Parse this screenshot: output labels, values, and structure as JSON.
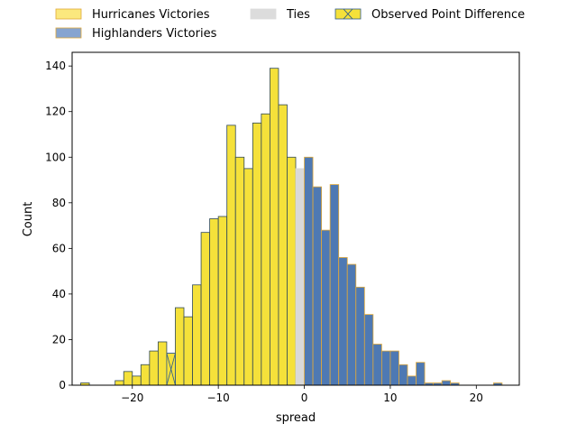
{
  "chart_data": {
    "type": "bar",
    "xlabel": "spread",
    "ylabel": "Count",
    "xlim": [
      -27,
      25
    ],
    "ylim": [
      0,
      146
    ],
    "xticks": [
      -20,
      -10,
      0,
      10,
      20
    ],
    "yticks": [
      0,
      20,
      40,
      60,
      80,
      100,
      120,
      140
    ],
    "xtick_labels": [
      "−20",
      "−10",
      "0",
      "10",
      "20"
    ],
    "ytick_labels": [
      "0",
      "20",
      "40",
      "60",
      "80",
      "100",
      "120",
      "140"
    ],
    "bin_width": 1,
    "grid": false,
    "legend_position": "top",
    "legend": [
      {
        "label": "Hurricanes Victories",
        "fill": "#fbe87e",
        "edge": "#e0a93a"
      },
      {
        "label": "Highlanders Victories",
        "fill": "#86a4d0",
        "edge": "#e0a93a"
      },
      {
        "label": "Ties",
        "fill": "#dcdcdc",
        "edge": "#dcdcdc"
      },
      {
        "label": "Observed Point Difference",
        "fill": "#f5e13a",
        "edge": "#2d5a8c"
      }
    ],
    "series": [
      {
        "name": "Hurricanes Victories",
        "color": "#f5e13a",
        "edge": "#2f4858",
        "bins": [
          [
            -26,
            1
          ],
          [
            -25,
            0
          ],
          [
            -24,
            0
          ],
          [
            -23,
            0
          ],
          [
            -22,
            2
          ],
          [
            -21,
            6
          ],
          [
            -20,
            4
          ],
          [
            -19,
            9
          ],
          [
            -18,
            15
          ],
          [
            -17,
            19
          ],
          [
            -16,
            14
          ],
          [
            -15,
            34
          ],
          [
            -14,
            30
          ],
          [
            -13,
            44
          ],
          [
            -12,
            67
          ],
          [
            -11,
            73
          ],
          [
            -10,
            74
          ],
          [
            -9,
            114
          ],
          [
            -8,
            100
          ],
          [
            -7,
            95
          ],
          [
            -6,
            115
          ],
          [
            -5,
            119
          ],
          [
            -4,
            139
          ],
          [
            -3,
            123
          ],
          [
            -2,
            100
          ],
          [
            -1,
            95
          ]
        ]
      },
      {
        "name": "Ties",
        "color": "#d9d9d9",
        "edge": "#d9d9d9",
        "bins": [
          [
            -1,
            95
          ]
        ]
      },
      {
        "name": "Highlanders Victories",
        "color": "#4e79b3",
        "edge": "#e0a93a",
        "bins": [
          [
            0,
            100
          ],
          [
            1,
            87
          ],
          [
            2,
            68
          ],
          [
            3,
            88
          ],
          [
            4,
            56
          ],
          [
            5,
            53
          ],
          [
            6,
            43
          ],
          [
            7,
            31
          ],
          [
            8,
            18
          ],
          [
            9,
            15
          ],
          [
            10,
            15
          ],
          [
            11,
            9
          ],
          [
            12,
            4
          ],
          [
            13,
            10
          ],
          [
            14,
            1
          ],
          [
            15,
            1
          ],
          [
            16,
            2
          ],
          [
            17,
            1
          ],
          [
            18,
            0
          ],
          [
            19,
            0
          ],
          [
            20,
            0
          ],
          [
            21,
            0
          ],
          [
            22,
            1
          ]
        ]
      },
      {
        "name": "Observed Point Difference",
        "color": "#f5e13a",
        "edge": "#2d5a8c",
        "bins": [
          [
            -16,
            14
          ]
        ]
      }
    ]
  }
}
